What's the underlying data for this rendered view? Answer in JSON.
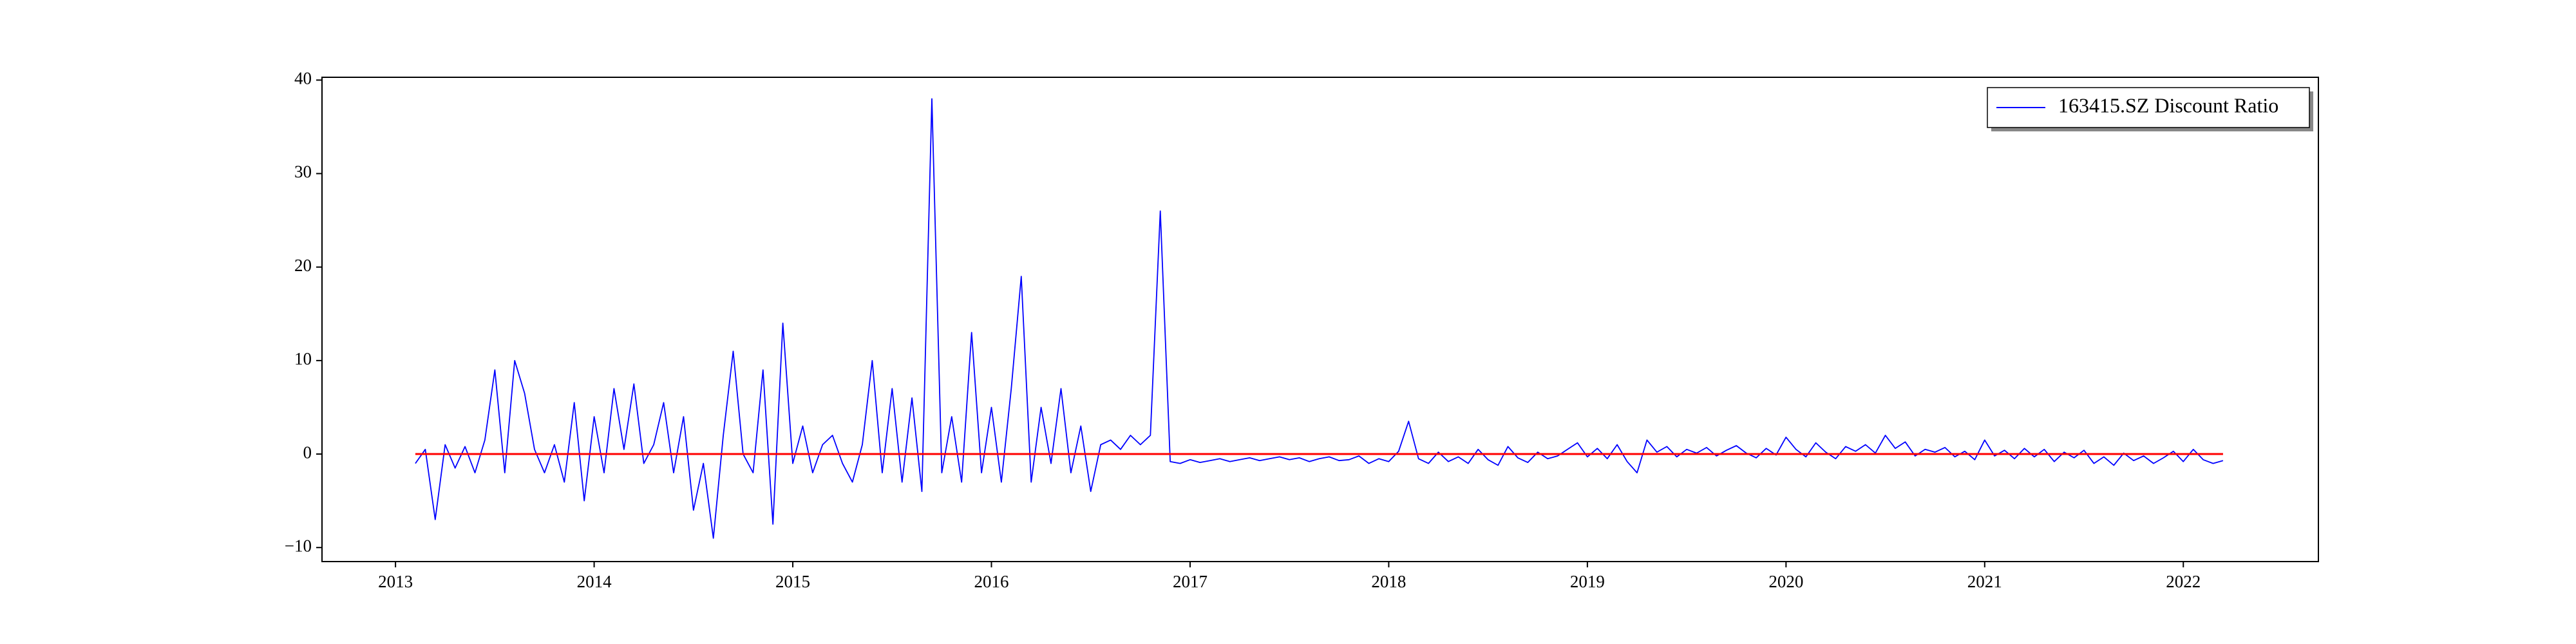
{
  "chart_data": {
    "type": "line",
    "x": [
      2013.1,
      2013.15,
      2013.2,
      2013.25,
      2013.3,
      2013.35,
      2013.4,
      2013.45,
      2013.5,
      2013.55,
      2013.6,
      2013.65,
      2013.7,
      2013.75,
      2013.8,
      2013.85,
      2013.9,
      2013.95,
      2014.0,
      2014.05,
      2014.1,
      2014.15,
      2014.2,
      2014.25,
      2014.3,
      2014.35,
      2014.4,
      2014.45,
      2014.5,
      2014.55,
      2014.6,
      2014.65,
      2014.7,
      2014.75,
      2014.8,
      2014.85,
      2014.9,
      2014.95,
      2015.0,
      2015.05,
      2015.1,
      2015.15,
      2015.2,
      2015.25,
      2015.3,
      2015.35,
      2015.4,
      2015.45,
      2015.5,
      2015.55,
      2015.6,
      2015.65,
      2015.7,
      2015.75,
      2015.8,
      2015.85,
      2015.9,
      2015.95,
      2016.0,
      2016.05,
      2016.1,
      2016.15,
      2016.2,
      2016.25,
      2016.3,
      2016.35,
      2016.4,
      2016.45,
      2016.5,
      2016.55,
      2016.6,
      2016.65,
      2016.7,
      2016.75,
      2016.8,
      2016.85,
      2016.9,
      2016.95,
      2017.0,
      2017.05,
      2017.1,
      2017.15,
      2017.2,
      2017.25,
      2017.3,
      2017.35,
      2017.4,
      2017.45,
      2017.5,
      2017.55,
      2017.6,
      2017.65,
      2017.7,
      2017.75,
      2017.8,
      2017.85,
      2017.9,
      2017.95,
      2018.0,
      2018.05,
      2018.1,
      2018.15,
      2018.2,
      2018.25,
      2018.3,
      2018.35,
      2018.4,
      2018.45,
      2018.5,
      2018.55,
      2018.6,
      2018.65,
      2018.7,
      2018.75,
      2018.8,
      2018.85,
      2018.9,
      2018.95,
      2019.0,
      2019.05,
      2019.1,
      2019.15,
      2019.2,
      2019.25,
      2019.3,
      2019.35,
      2019.4,
      2019.45,
      2019.5,
      2019.55,
      2019.6,
      2019.65,
      2019.7,
      2019.75,
      2019.8,
      2019.85,
      2019.9,
      2019.95,
      2020.0,
      2020.05,
      2020.1,
      2020.15,
      2020.2,
      2020.25,
      2020.3,
      2020.35,
      2020.4,
      2020.45,
      2020.5,
      2020.55,
      2020.6,
      2020.65,
      2020.7,
      2020.75,
      2020.8,
      2020.85,
      2020.9,
      2020.95,
      2021.0,
      2021.05,
      2021.1,
      2021.15,
      2021.2,
      2021.25,
      2021.3,
      2021.35,
      2021.4,
      2021.45,
      2021.5,
      2021.55,
      2021.6,
      2021.65,
      2021.7,
      2021.75,
      2021.8,
      2021.85,
      2021.9,
      2021.95,
      2022.0,
      2022.05,
      2022.1,
      2022.15,
      2022.2
    ],
    "series": [
      {
        "name": "163415.SZ Discount Ratio",
        "color": "#0000ff",
        "values": [
          -1,
          0.5,
          -7,
          1,
          -1.5,
          0.8,
          -2,
          1.5,
          9,
          -2,
          10,
          6.5,
          0.5,
          -2,
          1,
          -3,
          5.5,
          -5,
          4,
          -2,
          7,
          0.5,
          7.5,
          -1,
          1,
          5.5,
          -2,
          4,
          -6,
          -1,
          -9,
          2,
          11,
          0,
          -2,
          9,
          -7.5,
          14,
          -1,
          3,
          -2,
          1,
          2,
          -1,
          -3,
          1,
          10,
          -2,
          7,
          -3,
          6,
          -4,
          38,
          -2,
          4,
          -3,
          13,
          -2,
          5,
          -3,
          7,
          19,
          -3,
          5,
          -1,
          7,
          -2,
          3,
          -4,
          1,
          1.5,
          0.5,
          2,
          1,
          2,
          26,
          -0.8,
          -1,
          -0.6,
          -0.9,
          -0.7,
          -0.5,
          -0.8,
          -0.6,
          -0.4,
          -0.7,
          -0.5,
          -0.3,
          -0.6,
          -0.4,
          -0.8,
          -0.5,
          -0.3,
          -0.7,
          -0.6,
          -0.2,
          -1,
          -0.5,
          -0.8,
          0.3,
          3.5,
          -0.5,
          -1,
          0.2,
          -0.8,
          -0.3,
          -1,
          0.5,
          -0.6,
          -1.2,
          0.8,
          -0.4,
          -0.9,
          0.2,
          -0.5,
          -0.2,
          0.5,
          1.2,
          -0.3,
          0.6,
          -0.5,
          1,
          -0.8,
          -2,
          1.5,
          0.2,
          0.8,
          -0.3,
          0.5,
          0.1,
          0.7,
          -0.2,
          0.4,
          0.9,
          0.1,
          -0.4,
          0.6,
          -0.1,
          1.8,
          0.5,
          -0.3,
          1.2,
          0.2,
          -0.5,
          0.8,
          0.3,
          1,
          0.1,
          2,
          0.6,
          1.3,
          -0.2,
          0.5,
          0.2,
          0.7,
          -0.3,
          0.3,
          -0.6,
          1.5,
          -0.2,
          0.4,
          -0.5,
          0.6,
          -0.3,
          0.5,
          -0.8,
          0.2,
          -0.4,
          0.4,
          -1,
          -0.3,
          -1.2,
          0.1,
          -0.7,
          -0.2,
          -1,
          -0.4,
          0.3,
          -0.8,
          0.5,
          -0.6,
          -1,
          -0.7
        ]
      }
    ],
    "reference_line": {
      "y": 0,
      "x": [
        2013.1,
        2022.2
      ],
      "color": "#ff0000"
    },
    "xlim": [
      2012.63,
      2022.68
    ],
    "xticks": [
      2013,
      2014,
      2015,
      2016,
      2017,
      2018,
      2019,
      2020,
      2021,
      2022
    ],
    "ylim": [
      -11.5,
      40.3
    ],
    "yticks": [
      {
        "value": -10,
        "label": "−10"
      },
      0,
      10,
      20,
      30,
      40
    ],
    "legend": "upper right"
  }
}
